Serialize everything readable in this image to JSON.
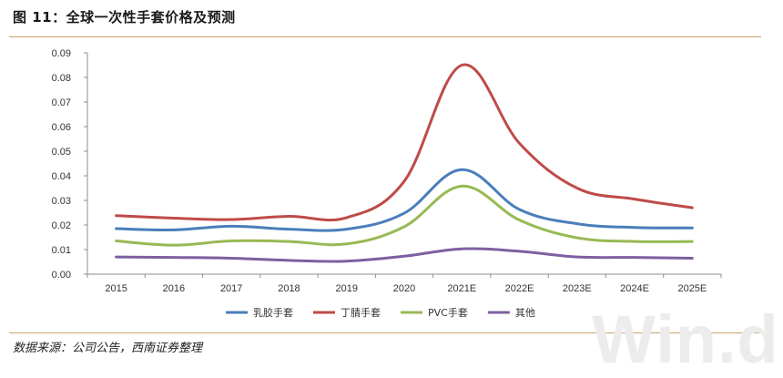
{
  "figure": {
    "title": "图 11：全球一次性手套价格及预测",
    "source": "数据来源：公司公告，西南证券整理",
    "watermark": "Win.d"
  },
  "chart_data": {
    "type": "line",
    "title": "全球一次性手套价格及预测",
    "xlabel": "",
    "ylabel": "",
    "categories": [
      "2015",
      "2016",
      "2017",
      "2018",
      "2019",
      "2020",
      "2021E",
      "2022E",
      "2023E",
      "2024E",
      "2025E"
    ],
    "ylim": [
      0,
      0.09
    ],
    "yticks": [
      "0.00",
      "0.01",
      "0.02",
      "0.03",
      "0.04",
      "0.05",
      "0.06",
      "0.07",
      "0.08",
      "0.09"
    ],
    "legend_position": "bottom",
    "grid": false,
    "series": [
      {
        "name": "乳胶手套",
        "color": "#4a7ebb",
        "values": [
          0.0185,
          0.018,
          0.0195,
          0.0183,
          0.0183,
          0.0248,
          0.0425,
          0.0263,
          0.0205,
          0.019,
          0.0188
        ]
      },
      {
        "name": "丁腈手套",
        "color": "#be4b48",
        "values": [
          0.0238,
          0.0228,
          0.0222,
          0.0235,
          0.023,
          0.0378,
          0.085,
          0.0532,
          0.035,
          0.0305,
          0.027
        ]
      },
      {
        "name": "PVC手套",
        "color": "#98b954",
        "values": [
          0.0135,
          0.0118,
          0.0135,
          0.0133,
          0.0123,
          0.0193,
          0.0358,
          0.022,
          0.0148,
          0.0133,
          0.0133
        ]
      },
      {
        "name": "其他",
        "color": "#7d60a0",
        "values": [
          0.007,
          0.0068,
          0.0065,
          0.0056,
          0.0053,
          0.0073,
          0.0103,
          0.0093,
          0.007,
          0.0068,
          0.0065
        ]
      }
    ]
  }
}
